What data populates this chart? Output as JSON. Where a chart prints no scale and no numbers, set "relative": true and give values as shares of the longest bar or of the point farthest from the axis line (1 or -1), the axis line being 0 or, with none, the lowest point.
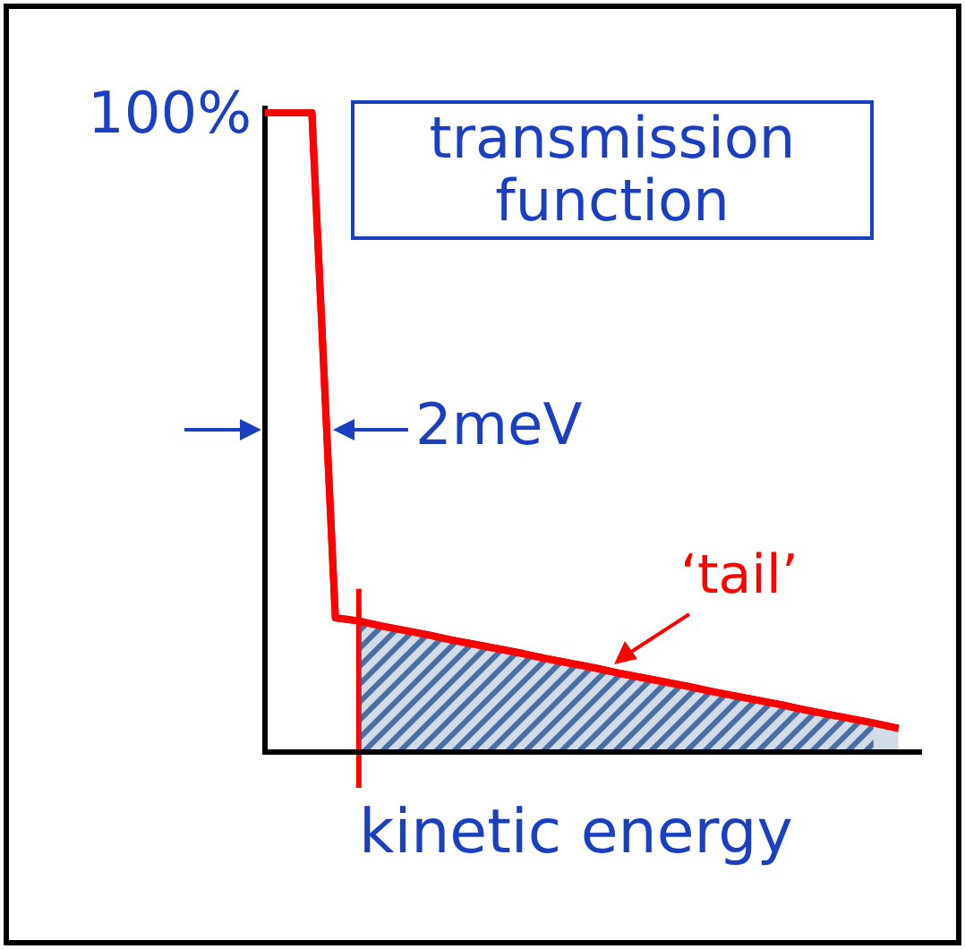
{
  "chart_data": {
    "type": "line",
    "relative": true,
    "xlabel": "kinetic energy",
    "categories": [
      null,
      null,
      null,
      null,
      null,
      null,
      null,
      null,
      null,
      null,
      null,
      null,
      null,
      null,
      null,
      null,
      null,
      null,
      null,
      null,
      null,
      null,
      null,
      null,
      null,
      null,
      null,
      null,
      null
    ],
    "series": [
      {
        "type": "line",
        "color": "#ff0000",
        "values": [
          1,
          1,
          1,
          0.21,
          0.205,
          0.197,
          0.19,
          0.183,
          0.175,
          0.168,
          0.161,
          0.154,
          0.146,
          0.139,
          0.132,
          0.124,
          0.117,
          0.11,
          0.103,
          0.095,
          0.088,
          0.081,
          0.074,
          0.066,
          0.059,
          0.052,
          0.045,
          0.037,
          null
        ]
      },
      {
        "type": "area",
        "color": "#4a6fa5",
        "values": [
          null,
          null,
          null,
          null,
          0.205,
          0.197,
          0.19,
          0.183,
          0.175,
          0.168,
          0.161,
          0.154,
          0.146,
          0.139,
          0.132,
          0.124,
          0.117,
          0.11,
          0.103,
          0.095,
          0.088,
          0.081,
          0.074,
          0.066,
          0.059,
          0.052,
          0.045,
          0.037,
          null
        ]
      }
    ],
    "annotations": [
      "100%",
      "transmission function",
      "2meV",
      "‘tail’"
    ],
    "marker": "none",
    "line_style": "solid"
  }
}
